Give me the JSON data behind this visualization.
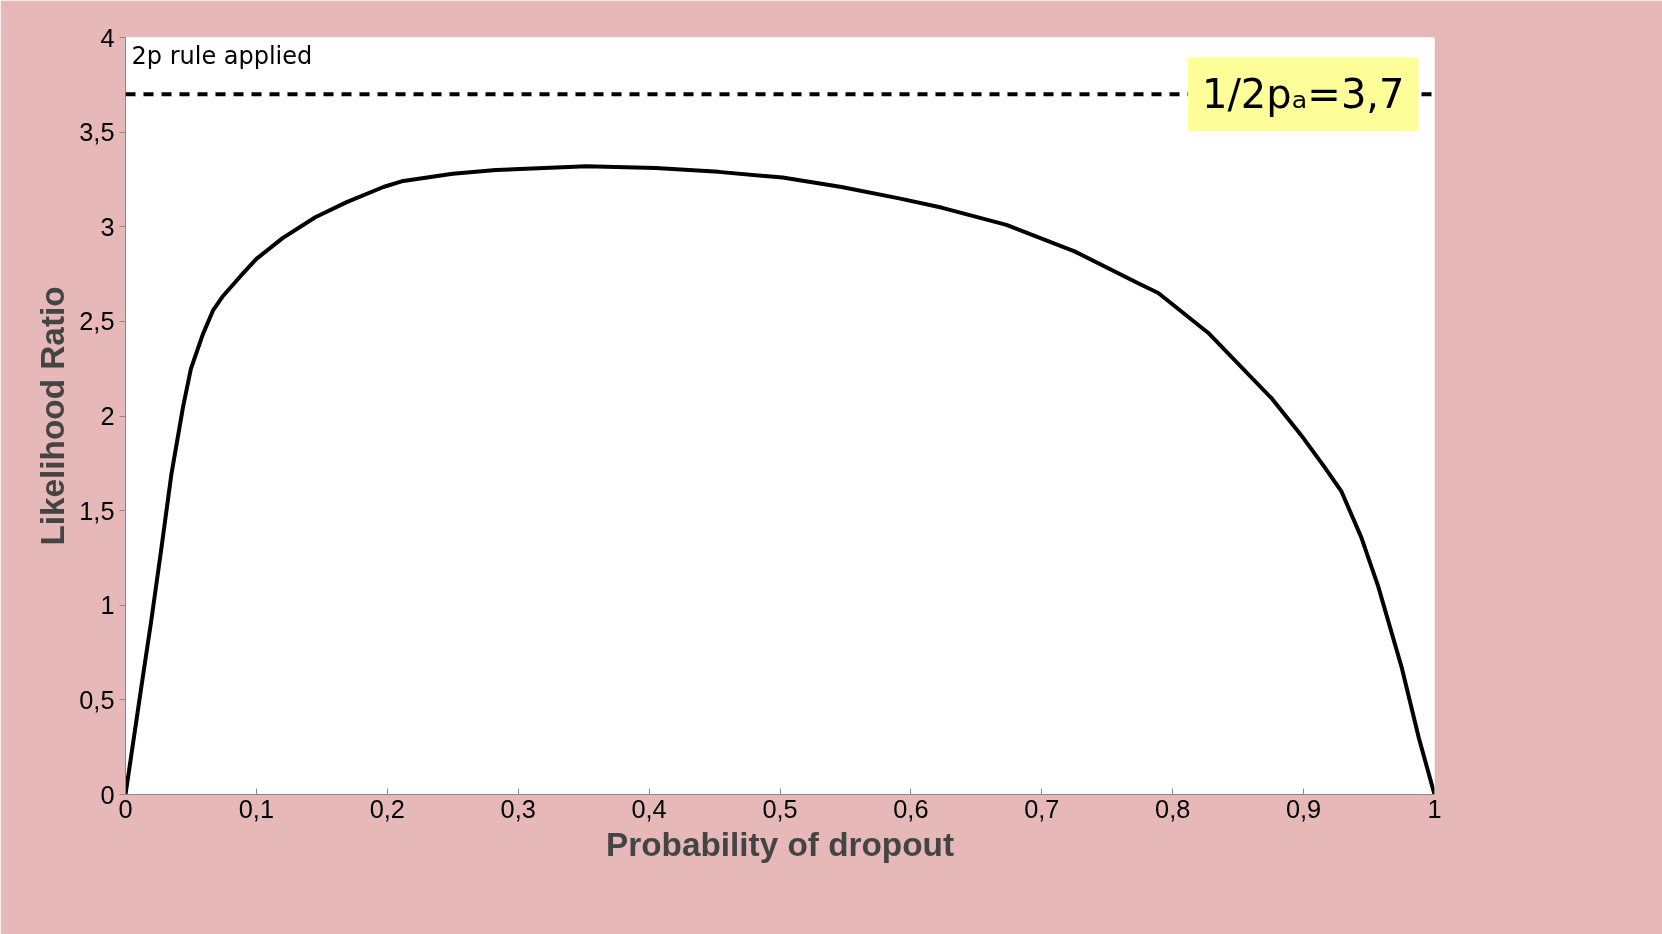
{
  "chart_data": {
    "type": "line",
    "xlabel": "Probability of dropout",
    "ylabel": "Likelihood Ratio",
    "annotations": [
      "2p rule applied"
    ],
    "series": [
      {
        "color": "#000000",
        "x": [
          0,
          0.013,
          0.0195,
          0.027,
          0.035,
          0.044,
          0.05,
          0.059,
          0.067,
          0.074,
          0.088,
          0.1,
          0.12,
          0.145,
          0.169,
          0.197,
          0.211,
          0.25,
          0.283,
          0.352,
          0.405,
          0.453,
          0.502,
          0.547,
          0.591,
          0.624,
          0.673,
          0.725,
          0.774,
          0.789,
          0.827,
          0.876,
          0.898,
          0.916,
          0.929,
          0.944,
          0.957,
          0.975,
          0.988,
          1
        ],
        "values": [
          0,
          0.61,
          0.91,
          1.28,
          1.69,
          2.05,
          2.25,
          2.43,
          2.56,
          2.63,
          2.74,
          2.83,
          2.94,
          3.05,
          3.13,
          3.21,
          3.24,
          3.28,
          3.3,
          3.32,
          3.31,
          3.29,
          3.26,
          3.21,
          3.15,
          3.1,
          3.01,
          2.87,
          2.7,
          2.65,
          2.44,
          2.09,
          1.9,
          1.73,
          1.6,
          1.36,
          1.1,
          0.67,
          0.3,
          0
        ]
      }
    ],
    "xlim": [
      0,
      1
    ],
    "xticks": [
      0,
      {
        "value": 0.1,
        "label": "0,1"
      },
      {
        "value": 0.2,
        "label": "0,2"
      },
      {
        "value": 0.3,
        "label": "0,3"
      },
      {
        "value": 0.4,
        "label": "0,4"
      },
      {
        "value": 0.5,
        "label": "0,5"
      },
      {
        "value": 0.6,
        "label": "0,6"
      },
      {
        "value": 0.7,
        "label": "0,7"
      },
      {
        "value": 0.8,
        "label": "0,8"
      },
      {
        "value": 0.9,
        "label": "0,9"
      },
      1
    ],
    "ylim": [
      0,
      4
    ],
    "yticks": [
      0,
      {
        "value": 0.5,
        "label": "0,5"
      },
      1,
      {
        "value": 1.5,
        "label": "1,5"
      },
      2,
      {
        "value": 2.5,
        "label": "2,5"
      },
      3,
      {
        "value": 3.5,
        "label": "3,5"
      },
      4
    ],
    "ref_lines": [
      {
        "axis": "y",
        "value": 3.7,
        "label": "1/2pₐ=3,7",
        "color": "#000000",
        "line_style": "dashed"
      }
    ],
    "grid": false,
    "marker": "none",
    "line_style": "solid"
  }
}
